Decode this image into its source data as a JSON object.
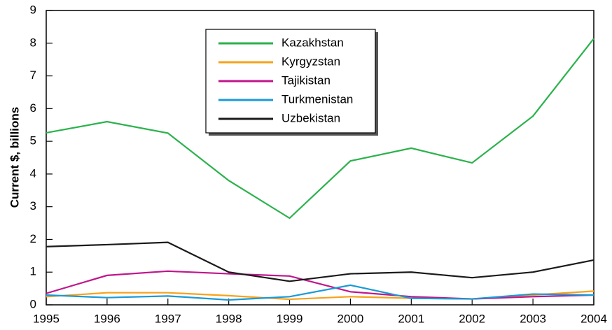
{
  "chart_data": {
    "type": "line",
    "y_label": "Current $, billions",
    "categories": [
      "1995",
      "1996",
      "1997",
      "1998",
      "1999",
      "2000",
      "2001",
      "2002",
      "2003",
      "2004"
    ],
    "series": [
      {
        "name": "Kazakhstan",
        "color": "#2bb24c",
        "values": [
          5.26,
          5.6,
          5.25,
          3.8,
          2.65,
          4.4,
          4.79,
          4.34,
          5.77,
          8.14
        ]
      },
      {
        "name": "Kyrgyzstan",
        "color": "#f7a21b",
        "values": [
          0.25,
          0.37,
          0.37,
          0.28,
          0.17,
          0.25,
          0.2,
          0.18,
          0.3,
          0.42
        ]
      },
      {
        "name": "Tajikistan",
        "color": "#c0168c",
        "values": [
          0.35,
          0.9,
          1.03,
          0.95,
          0.88,
          0.4,
          0.25,
          0.18,
          0.25,
          0.3
        ]
      },
      {
        "name": "Turkmenistan",
        "color": "#1a9ad6",
        "values": [
          0.3,
          0.22,
          0.27,
          0.15,
          0.25,
          0.6,
          0.2,
          0.18,
          0.33,
          0.3
        ]
      },
      {
        "name": "Uzbekistan",
        "color": "#1a1a1a",
        "values": [
          1.78,
          1.84,
          1.91,
          1.0,
          0.72,
          0.95,
          1.0,
          0.83,
          1.0,
          1.37
        ]
      }
    ],
    "ylim": [
      0,
      9
    ],
    "yticks": [
      0,
      1,
      2,
      3,
      4,
      5,
      6,
      7,
      8,
      9
    ]
  }
}
